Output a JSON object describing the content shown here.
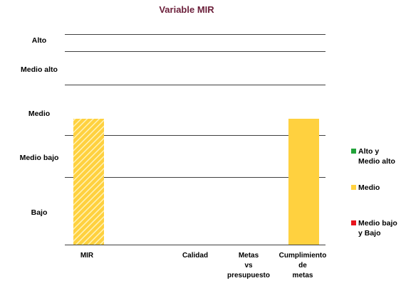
{
  "chart_data": {
    "type": "bar",
    "title": "Variable  MIR",
    "y_levels": [
      "Bajo",
      "Medio bajo",
      "Medio",
      "Medio alto",
      "Alto"
    ],
    "y_label_texts": [
      "Alto",
      "Medio  alto",
      "Medio",
      "Medio bajo",
      "Bajo"
    ],
    "categories": [
      {
        "lines": [
          "MIR"
        ]
      },
      {
        "lines": [
          "Calidad"
        ]
      },
      {
        "lines": [
          "Metas",
          "vs",
          "presupuesto"
        ]
      },
      {
        "lines": [
          "Cumplimiento",
          "de",
          "metas"
        ]
      }
    ],
    "values": [
      "Medio",
      null,
      null,
      "Medio"
    ],
    "bar_styles": [
      "hatched",
      null,
      null,
      "solid"
    ],
    "legend_position": "right",
    "legend": [
      {
        "lines": [
          "Alto y",
          "Medio alto"
        ],
        "color": "#22a33a"
      },
      {
        "lines": [
          "Medio"
        ],
        "color": "#ffd13f"
      },
      {
        "lines": [
          "Medio bajo",
          "y Bajo"
        ],
        "color": "#e8141d"
      }
    ],
    "bar_color": "#ffd13f",
    "hatch_color": "#fff3b8",
    "grid": true
  }
}
